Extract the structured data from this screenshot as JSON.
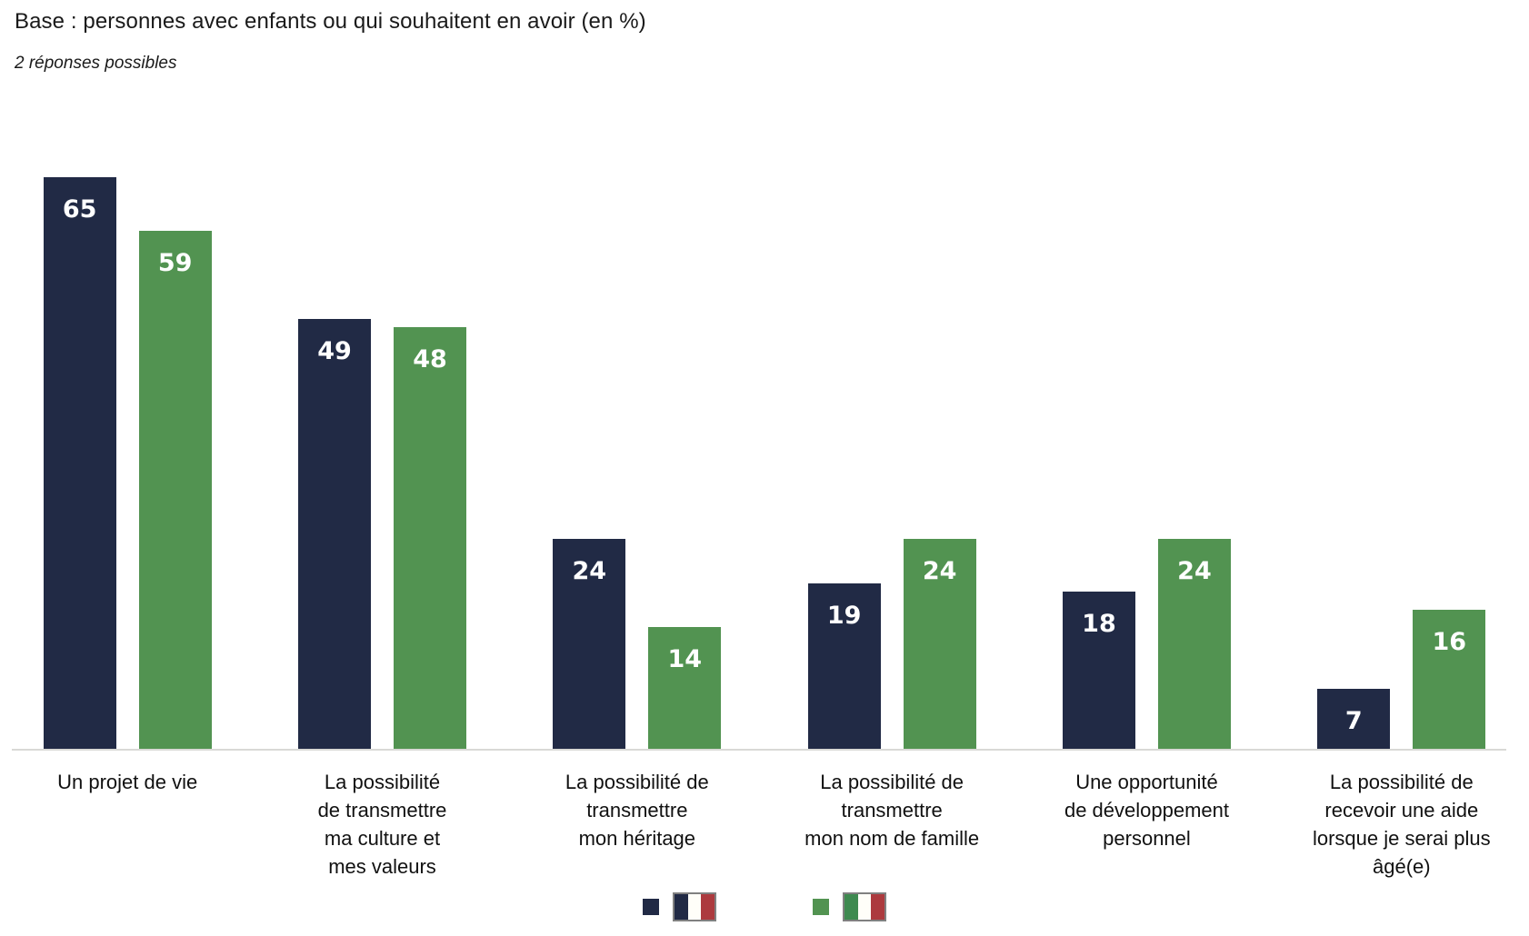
{
  "header": {
    "title": "Base : personnes avec enfants ou qui souhaitent en avoir (en %)",
    "subtitle": "2 réponses possibles"
  },
  "chart_data": {
    "type": "bar",
    "title": "Base : personnes avec enfants ou qui souhaitent en avoir (en %)",
    "subtitle": "2 réponses possibles",
    "categories": [
      "Un projet de vie",
      "La possibilité de transmettre ma culture et mes valeurs",
      "La possibilité de transmettre mon héritage",
      "La possibilité de transmettre mon nom de famille",
      "Une opportunité de développement personnel",
      "La possibilité de recevoir une aide lorsque je serai plus âgé(e)"
    ],
    "category_lines": [
      [
        "Un projet de vie"
      ],
      [
        "La possibilité",
        "de transmettre",
        "ma culture et",
        "mes valeurs"
      ],
      [
        "La possibilité de",
        "transmettre",
        "mon héritage"
      ],
      [
        "La possibilité de",
        "transmettre",
        "mon nom de famille"
      ],
      [
        "Une opportunité",
        "de développement",
        "personnel"
      ],
      [
        "La possibilité de",
        "recevoir une aide",
        "lorsque je serai plus",
        "âgé(e)"
      ]
    ],
    "series": [
      {
        "name": "France",
        "color": "#212A45",
        "values": [
          65,
          49,
          24,
          19,
          18,
          7
        ]
      },
      {
        "name": "Italie",
        "color": "#529351",
        "values": [
          59,
          48,
          14,
          24,
          24,
          16
        ]
      }
    ],
    "value_labels": true,
    "value_label_color": "#ffffff",
    "ylim": [
      0,
      67
    ],
    "grid": false,
    "axis_line_color": "#d9d9d6",
    "legend_position": "bottom-center",
    "legend": [
      {
        "name": "France",
        "swatch_color": "#212A45",
        "flag": "france",
        "flag_stripes": [
          "#212A45",
          "#FFFEF9",
          "#AC3A3E"
        ]
      },
      {
        "name": "Italie",
        "swatch_color": "#529351",
        "flag": "italy",
        "flag_stripes": [
          "#3E8A50",
          "#FFFEF9",
          "#AC3A3E"
        ]
      }
    ]
  }
}
